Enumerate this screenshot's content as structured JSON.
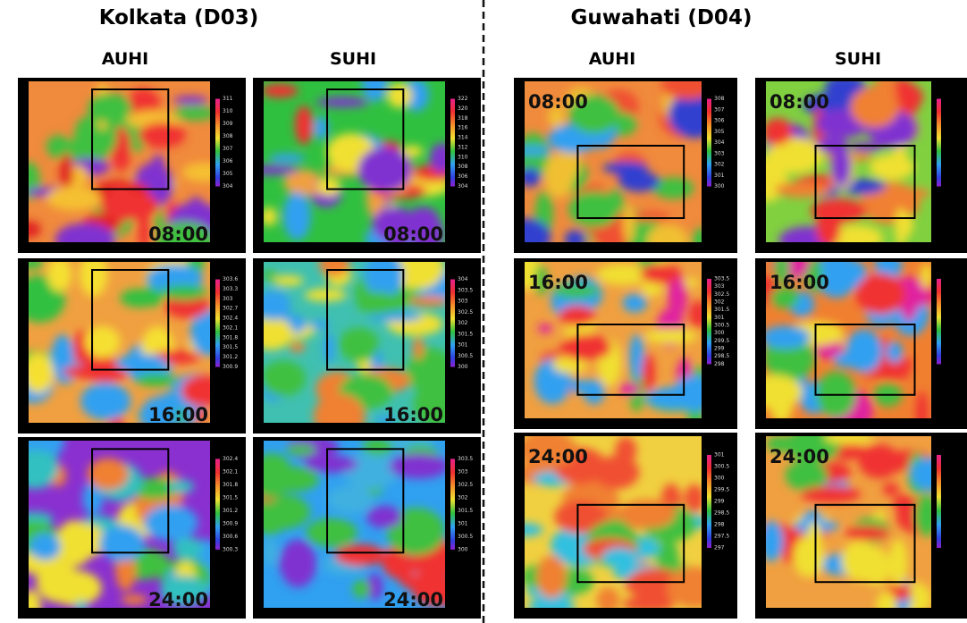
{
  "regions": [
    {
      "title": "Kolkata (D03)",
      "columns": [
        {
          "label": "AUHI",
          "panels": [
            {
              "time": "08:00",
              "colorbar": [
                311,
                310,
                309,
                308,
                307,
                306,
                305,
                304
              ]
            },
            {
              "time": "16:00",
              "colorbar": [
                303.6,
                303.3,
                303,
                302.7,
                302.4,
                302.1,
                301.8,
                301.5,
                301.2,
                300.9
              ]
            },
            {
              "time": "24:00",
              "colorbar": [
                302.4,
                302.1,
                301.8,
                301.5,
                301.2,
                300.9,
                300.6,
                300.3
              ]
            }
          ]
        },
        {
          "label": "SUHI",
          "panels": [
            {
              "time": "08:00",
              "colorbar": [
                322,
                320,
                318,
                316,
                314,
                312,
                310,
                308,
                306,
                304
              ]
            },
            {
              "time": "16:00",
              "colorbar": [
                304,
                303.5,
                303,
                302.5,
                302,
                301.5,
                301,
                300.5,
                300
              ]
            },
            {
              "time": "24:00",
              "colorbar": [
                303.5,
                303,
                302.5,
                302,
                301.5,
                301,
                300.5,
                300
              ]
            }
          ]
        }
      ]
    },
    {
      "title": "Guwahati (D04)",
      "columns": [
        {
          "label": "AUHI",
          "panels": [
            {
              "time": "08:00",
              "colorbar": [
                308,
                307,
                306,
                305,
                304,
                303,
                302,
                301,
                300
              ]
            },
            {
              "time": "16:00",
              "colorbar": [
                303.5,
                303,
                302.5,
                302,
                301.5,
                301,
                300.5,
                300,
                299.5,
                299,
                298.5,
                298
              ]
            },
            {
              "time": "24:00",
              "colorbar": [
                301,
                300.5,
                300,
                299.5,
                299,
                298.5,
                298,
                297.5,
                297
              ]
            }
          ]
        },
        {
          "label": "SUHI",
          "panels": [
            {
              "time": "08:00"
            },
            {
              "time": "16:00"
            },
            {
              "time": "24:00"
            }
          ]
        }
      ]
    }
  ]
}
